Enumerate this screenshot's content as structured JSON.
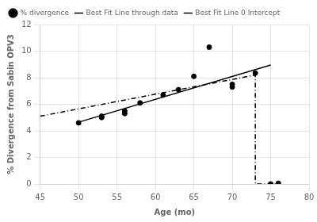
{
  "chart_data": {
    "type": "scatter",
    "xlabel": "Age (mo)",
    "ylabel": "% Divergence from Sabin OPV3",
    "xlim": [
      45,
      80
    ],
    "ylim": [
      0,
      12
    ],
    "xticks": [
      45,
      50,
      55,
      60,
      65,
      70,
      75,
      80
    ],
    "yticks": [
      0,
      2,
      4,
      6,
      8,
      10,
      12
    ],
    "grid": true,
    "legend": "upper left",
    "series": [
      {
        "name": "% divergence",
        "type": "scatter",
        "color": "#000000",
        "marker": "o",
        "x": [
          50,
          53,
          53,
          56,
          56,
          58,
          61,
          63,
          65,
          67,
          70,
          70,
          73,
          75,
          76
        ],
        "values": [
          4.6,
          5.1,
          5.0,
          5.5,
          5.3,
          6.1,
          6.7,
          7.1,
          8.1,
          10.3,
          7.3,
          7.5,
          8.35,
          0.0,
          0.05
        ]
      },
      {
        "name": "Best Fit Line through data",
        "type": "line",
        "color": "#000000",
        "line_style": "solid",
        "x": [
          50,
          75
        ],
        "values": [
          4.65,
          8.95
        ]
      },
      {
        "name": "Best Fit Line 0 Intercept",
        "type": "line",
        "color": "#000000",
        "line_style": "dashdot",
        "x": [
          45,
          73,
          73,
          76
        ],
        "values": [
          5.1,
          8.2,
          0.0,
          0.0
        ]
      }
    ]
  }
}
